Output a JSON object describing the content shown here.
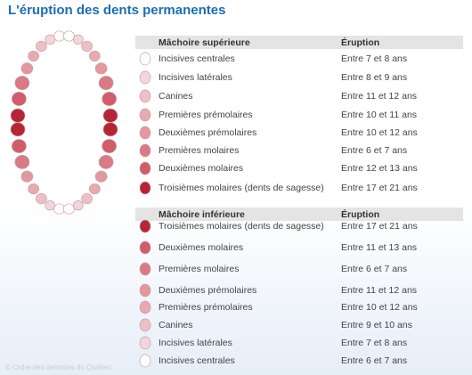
{
  "title": "L'éruption des dents permanentes",
  "footer": "© Ordre des dentistes du Québec",
  "sections": [
    {
      "header": [
        "Mâchoire supérieure",
        "Éruption"
      ],
      "rows": [
        [
          "Incisives centrales",
          "Entre 7 et 8 ans"
        ],
        [
          "Incisives latérales",
          "Entre 8 et 9 ans"
        ],
        [
          "Canines",
          "Entre 11 et 12 ans"
        ],
        [
          "Premières prémolaires",
          "Entre 10 et 11 ans"
        ],
        [
          "Deuxièmes prémolaires",
          "Entre 10 et 12 ans"
        ],
        [
          "Premières molaires",
          "Entre 6 et 7 ans"
        ],
        [
          "Deuxièmes molaires",
          "Entre 12 et 13 ans"
        ],
        [
          "Troisièmes molaires (dents de sagesse)",
          "Entre 17 et 21 ans"
        ]
      ]
    },
    {
      "header": [
        "Mâchoire inférieure",
        "Éruption"
      ],
      "rows": [
        [
          "Troisièmes molaires (dents de sagesse)",
          "Entre 17 et 21 ans"
        ],
        [
          "Deuxièmes molaires",
          "Entre 11 et 13 ans"
        ],
        [
          "Premières molaires",
          "Entre 6 et 7 ans"
        ],
        [
          "Deuxièmes prémolaires",
          "Entre 11 et 12 ans"
        ],
        [
          "Premières prémolaires",
          "Entre 10 et 12 ans"
        ],
        [
          "Canines",
          "Entre 9 et 10 ans"
        ],
        [
          "Incisives latérales",
          "Entre 7 et 8 ans"
        ],
        [
          "Incisives centrales",
          "Entre 6 et 7 ans"
        ]
      ]
    }
  ]
}
